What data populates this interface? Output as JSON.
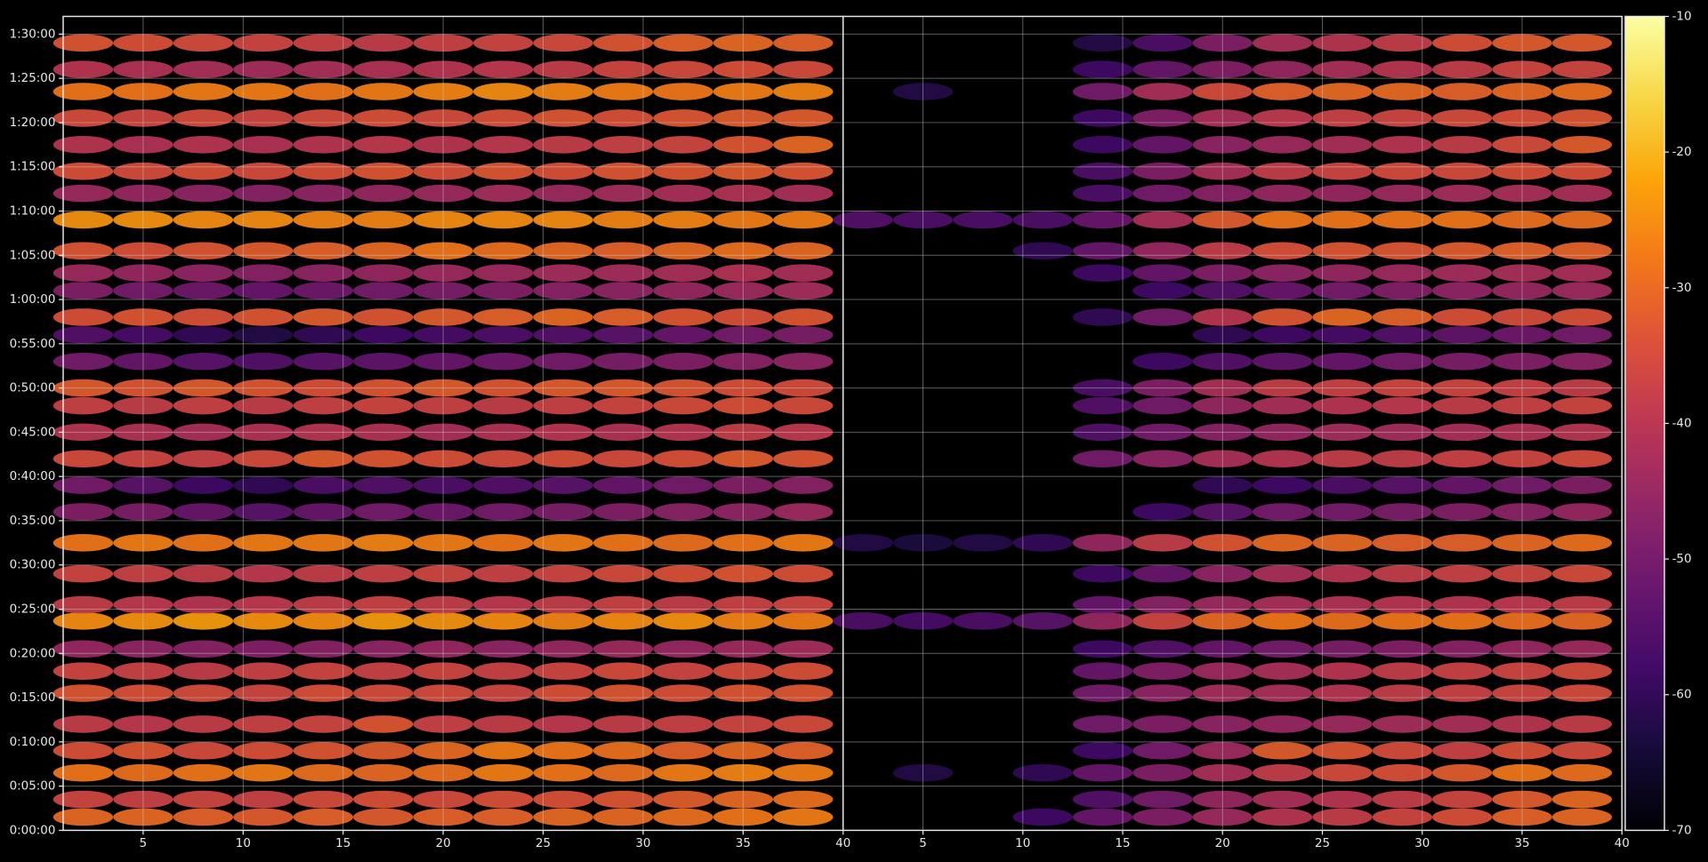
{
  "chart_data": {
    "type": "heatmap",
    "colormap": "inferno",
    "grid": true,
    "y": [
      90,
      210,
      390,
      540,
      720,
      930,
      1080,
      1230,
      1420,
      1530,
      1740,
      1950,
      2160,
      2340,
      2520,
      2700,
      2880,
      3000,
      3180,
      3360,
      3480,
      3660,
      3780,
      3930,
      4140,
      4320,
      4470,
      4650,
      4830,
      5010,
      5160,
      5340
    ],
    "ylim": [
      0,
      5520
    ],
    "yticks": [
      {
        "value": 0,
        "label": "0:00:00"
      },
      {
        "value": 300,
        "label": "0:05:00"
      },
      {
        "value": 600,
        "label": "0:10:00"
      },
      {
        "value": 900,
        "label": "0:15:00"
      },
      {
        "value": 1200,
        "label": "0:20:00"
      },
      {
        "value": 1500,
        "label": "0:25:00"
      },
      {
        "value": 1800,
        "label": "0:30:00"
      },
      {
        "value": 2100,
        "label": "0:35:00"
      },
      {
        "value": 2400,
        "label": "0:40:00"
      },
      {
        "value": 2700,
        "label": "0:45:00"
      },
      {
        "value": 3000,
        "label": "0:50:00"
      },
      {
        "value": 3300,
        "label": "0:55:00"
      },
      {
        "value": 3600,
        "label": "1:00:00"
      },
      {
        "value": 3900,
        "label": "1:05:00"
      },
      {
        "value": 4200,
        "label": "1:10:00"
      },
      {
        "value": 4500,
        "label": "1:15:00"
      },
      {
        "value": 4800,
        "label": "1:20:00"
      },
      {
        "value": 5100,
        "label": "1:25:00"
      },
      {
        "value": 5400,
        "label": "1:30:00"
      }
    ],
    "zlim": [
      -70,
      -10
    ],
    "zticks": [
      -70,
      -60,
      -50,
      -40,
      -30,
      -20,
      -10
    ],
    "panels": [
      {
        "x": [
          2,
          5,
          8,
          11,
          14,
          17,
          20,
          23,
          26,
          29,
          32,
          35,
          38
        ],
        "xlim": [
          1,
          40
        ],
        "xticks": [
          5,
          10,
          15,
          20,
          25,
          30,
          35,
          40
        ],
        "values": [
          [
            -30,
            -30,
            -31,
            -32,
            -31,
            -32,
            -31,
            -31,
            -30,
            -30,
            -29,
            -28,
            -27
          ],
          [
            -36,
            -37,
            -36,
            -37,
            -35,
            -34,
            -35,
            -34,
            -34,
            -33,
            -32,
            -30,
            -29
          ],
          [
            -28,
            -29,
            -28,
            -27,
            -29,
            -30,
            -29,
            -27,
            -28,
            -29,
            -27,
            -26,
            -27
          ],
          [
            -34,
            -33,
            -35,
            -34,
            -33,
            -32,
            -30,
            -27,
            -28,
            -29,
            -31,
            -30,
            -31
          ],
          [
            -38,
            -39,
            -38,
            -37,
            -36,
            -33,
            -37,
            -38,
            -39,
            -38,
            -37,
            -36,
            -35
          ],
          [
            -33,
            -34,
            -35,
            -36,
            -34,
            -35,
            -35,
            -36,
            -34,
            -33,
            -34,
            -33,
            -33
          ],
          [
            -36,
            -37,
            -38,
            -37,
            -36,
            -37,
            -36,
            -37,
            -36,
            -35,
            -36,
            -35,
            -34
          ],
          [
            -45,
            -46,
            -47,
            -48,
            -47,
            -46,
            -45,
            -46,
            -45,
            -44,
            -45,
            -44,
            -43
          ],
          [
            -25,
            -24,
            -23,
            -24,
            -25,
            -23,
            -24,
            -25,
            -26,
            -25,
            -24,
            -26,
            -27
          ],
          [
            -38,
            -39,
            -40,
            -39,
            -38,
            -37,
            -38,
            -39,
            -38,
            -37,
            -38,
            -37,
            -36
          ],
          [
            -36,
            -37,
            -38,
            -39,
            -38,
            -37,
            -36,
            -37,
            -36,
            -35,
            -34,
            -33,
            -34
          ],
          [
            -28,
            -27,
            -28,
            -27,
            -27,
            -26,
            -27,
            -28,
            -27,
            -28,
            -29,
            -28,
            -27
          ],
          [
            -48,
            -49,
            -52,
            -54,
            -52,
            -50,
            -51,
            -50,
            -49,
            -48,
            -47,
            -46,
            -44
          ],
          [
            -50,
            -54,
            -58,
            -60,
            -56,
            -55,
            -56,
            -55,
            -54,
            -52,
            -50,
            -48,
            -47
          ],
          [
            -35,
            -36,
            -37,
            -35,
            -32,
            -33,
            -34,
            -35,
            -34,
            -35,
            -34,
            -32,
            -33
          ],
          [
            -40,
            -41,
            -42,
            -41,
            -40,
            -41,
            -42,
            -41,
            -40,
            -41,
            -40,
            -38,
            -39
          ],
          [
            -37,
            -38,
            -37,
            -38,
            -37,
            -36,
            -37,
            -38,
            -37,
            -36,
            -35,
            -34,
            -35
          ],
          [
            -32,
            -33,
            -32,
            -33,
            -34,
            -33,
            -32,
            -33,
            -32,
            -32,
            -33,
            -34,
            -35
          ],
          [
            -50,
            -52,
            -54,
            -55,
            -54,
            -53,
            -52,
            -51,
            -50,
            -49,
            -48,
            -47,
            -46
          ],
          [
            -55,
            -57,
            -60,
            -62,
            -60,
            -58,
            -57,
            -56,
            -55,
            -54,
            -52,
            -50,
            -49
          ],
          [
            -34,
            -33,
            -34,
            -33,
            -32,
            -33,
            -32,
            -31,
            -30,
            -31,
            -33,
            -34,
            -33
          ],
          [
            -48,
            -50,
            -51,
            -52,
            -51,
            -50,
            -49,
            -48,
            -47,
            -46,
            -45,
            -44,
            -43
          ],
          [
            -44,
            -45,
            -46,
            -47,
            -46,
            -45,
            -44,
            -44,
            -43,
            -43,
            -42,
            -41,
            -42
          ],
          [
            -33,
            -34,
            -33,
            -32,
            -31,
            -30,
            -28,
            -29,
            -30,
            -31,
            -30,
            -29,
            -30
          ],
          [
            -24,
            -24,
            -25,
            -25,
            -26,
            -26,
            -25,
            -25,
            -25,
            -26,
            -26,
            -27,
            -27
          ],
          [
            -44,
            -45,
            -46,
            -47,
            -46,
            -45,
            -44,
            -43,
            -44,
            -43,
            -42,
            -41,
            -42
          ],
          [
            -34,
            -35,
            -34,
            -35,
            -34,
            -33,
            -34,
            -33,
            -34,
            -33,
            -33,
            -32,
            -33
          ],
          [
            -40,
            -41,
            -40,
            -41,
            -40,
            -39,
            -40,
            -39,
            -38,
            -37,
            -36,
            -33,
            -30
          ],
          [
            -35,
            -36,
            -35,
            -36,
            -35,
            -34,
            -35,
            -34,
            -33,
            -34,
            -33,
            -32,
            -32
          ],
          [
            -28,
            -28,
            -27,
            -27,
            -28,
            -27,
            -26,
            -25,
            -26,
            -27,
            -28,
            -27,
            -26
          ],
          [
            -40,
            -41,
            -42,
            -43,
            -42,
            -41,
            -40,
            -39,
            -38,
            -36,
            -35,
            -34,
            -35
          ],
          [
            -33,
            -34,
            -35,
            -36,
            -37,
            -38,
            -37,
            -36,
            -35,
            -33,
            -31,
            -30,
            -31
          ]
        ]
      },
      {
        "x": [
          2,
          5,
          8,
          11,
          14,
          17,
          20,
          23,
          26,
          29,
          32,
          35,
          38
        ],
        "xlim": [
          1,
          40
        ],
        "xticks": [
          5,
          10,
          15,
          20,
          25,
          30,
          35,
          40
        ],
        "values": [
          [
            null,
            null,
            null,
            -58,
            -52,
            -48,
            -44,
            -40,
            -38,
            -36,
            -34,
            -31,
            -30
          ],
          [
            null,
            null,
            null,
            null,
            -55,
            -50,
            -45,
            -42,
            -40,
            -38,
            -36,
            -32,
            -30
          ],
          [
            null,
            -62,
            null,
            -60,
            -52,
            -48,
            -42,
            -38,
            -35,
            -34,
            -32,
            -28,
            -29
          ],
          [
            null,
            null,
            null,
            null,
            -58,
            -50,
            -44,
            -32,
            -33,
            -35,
            -37,
            -34,
            -35
          ],
          [
            null,
            null,
            null,
            null,
            -50,
            -48,
            -46,
            -45,
            -44,
            -43,
            -42,
            -40,
            -38
          ],
          [
            null,
            null,
            null,
            null,
            -50,
            -46,
            -43,
            -42,
            -40,
            -38,
            -37,
            -36,
            -35
          ],
          [
            null,
            null,
            null,
            null,
            -52,
            -48,
            -44,
            -42,
            -40,
            -38,
            -37,
            -36,
            -35
          ],
          [
            null,
            null,
            null,
            null,
            -58,
            -55,
            -52,
            -50,
            -49,
            -48,
            -47,
            -45,
            -44
          ],
          [
            -56,
            -57,
            -56,
            -54,
            -45,
            -36,
            -30,
            -28,
            -29,
            -28,
            -28,
            -29,
            -30
          ],
          [
            null,
            null,
            null,
            null,
            -52,
            -47,
            -44,
            -42,
            -41,
            -40,
            -40,
            -39,
            -38
          ],
          [
            null,
            null,
            null,
            null,
            -58,
            -52,
            -46,
            -42,
            -40,
            -38,
            -37,
            -36,
            -35
          ],
          [
            -62,
            -63,
            -62,
            -60,
            -45,
            -38,
            -33,
            -30,
            -30,
            -31,
            -31,
            -30,
            -29
          ],
          [
            null,
            null,
            null,
            null,
            null,
            -58,
            -54,
            -50,
            -50,
            -49,
            -48,
            -47,
            -45
          ],
          [
            null,
            null,
            null,
            null,
            null,
            null,
            -60,
            -58,
            -56,
            -54,
            -52,
            -50,
            -48
          ],
          [
            null,
            null,
            null,
            null,
            -50,
            -46,
            -42,
            -40,
            -38,
            -38,
            -37,
            -36,
            -35
          ],
          [
            null,
            null,
            null,
            null,
            -55,
            -50,
            -47,
            -45,
            -43,
            -43,
            -42,
            -41,
            -40
          ],
          [
            null,
            null,
            null,
            null,
            -55,
            -50,
            -45,
            -42,
            -40,
            -39,
            -38,
            -37,
            -36
          ],
          [
            null,
            null,
            null,
            null,
            -56,
            -48,
            -42,
            -38,
            -37,
            -36,
            -36,
            -37,
            -38
          ],
          [
            null,
            null,
            null,
            null,
            null,
            -58,
            -55,
            -53,
            -52,
            -50,
            -49,
            -48,
            -47
          ],
          [
            null,
            null,
            null,
            null,
            null,
            null,
            -60,
            -58,
            -57,
            -55,
            -53,
            -51,
            -50
          ],
          [
            null,
            null,
            null,
            null,
            -60,
            -50,
            -40,
            -33,
            -30,
            -31,
            -34,
            -35,
            -34
          ],
          [
            null,
            null,
            null,
            null,
            null,
            -58,
            -55,
            -52,
            -50,
            -48,
            -46,
            -45,
            -44
          ],
          [
            null,
            null,
            null,
            null,
            -58,
            -52,
            -48,
            -46,
            -45,
            -44,
            -43,
            -42,
            -42
          ],
          [
            null,
            null,
            null,
            -60,
            -52,
            -45,
            -38,
            -34,
            -33,
            -33,
            -32,
            -31,
            -31
          ],
          [
            -55,
            -56,
            -56,
            -56,
            -52,
            -42,
            -32,
            -28,
            -28,
            -28,
            -28,
            -29,
            -29
          ],
          [
            null,
            null,
            null,
            null,
            -56,
            -50,
            -47,
            -45,
            -45,
            -44,
            -43,
            -42,
            -42
          ],
          [
            null,
            null,
            null,
            null,
            -56,
            -48,
            -42,
            -38,
            -36,
            -35,
            -35,
            -34,
            -34
          ],
          [
            null,
            null,
            null,
            null,
            -58,
            -52,
            -46,
            -44,
            -42,
            -40,
            -38,
            -35,
            -32
          ],
          [
            null,
            null,
            null,
            null,
            -58,
            -48,
            -42,
            -39,
            -37,
            -36,
            -35,
            -34,
            -33
          ],
          [
            null,
            -62,
            null,
            null,
            -50,
            -42,
            -35,
            -31,
            -30,
            -30,
            -31,
            -30,
            -29
          ],
          [
            null,
            null,
            null,
            null,
            -58,
            -52,
            -48,
            -45,
            -42,
            -40,
            -38,
            -36,
            -36
          ],
          [
            null,
            null,
            null,
            null,
            -62,
            -56,
            -48,
            -42,
            -40,
            -38,
            -34,
            -32,
            -32
          ]
        ]
      }
    ]
  }
}
